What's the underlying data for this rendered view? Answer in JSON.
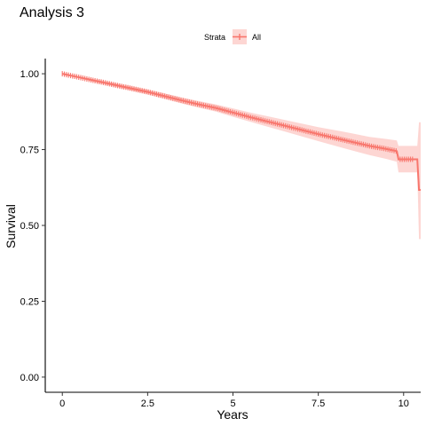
{
  "chart_data": {
    "type": "line",
    "title": "Analysis 3",
    "xlabel": "Years",
    "ylabel": "Survival",
    "xlim": [
      -0.5,
      10.5
    ],
    "ylim": [
      -0.05,
      1.05
    ],
    "x_ticks": [
      0,
      2.5,
      5,
      7.5,
      10
    ],
    "x_tick_labels": [
      "0",
      "2.5",
      "5",
      "7.5",
      "10"
    ],
    "y_ticks": [
      0,
      0.25,
      0.5,
      0.75,
      1
    ],
    "y_tick_labels": [
      "0.00",
      "0.25",
      "0.50",
      "0.75",
      "1.00"
    ],
    "grid": false,
    "legend": {
      "title": "Strata",
      "position": "top"
    },
    "colors": {
      "series": "#F8766D"
    },
    "series": [
      {
        "name": "All",
        "x": [
          0,
          0.5,
          1,
          1.5,
          2,
          2.5,
          3,
          3.5,
          4,
          4.5,
          5,
          5.5,
          6,
          6.5,
          7,
          7.5,
          8,
          8.5,
          9,
          9.5,
          9.8,
          9.85,
          10.4,
          10.45,
          10.5
        ],
        "y": [
          1.0,
          0.988,
          0.976,
          0.964,
          0.952,
          0.94,
          0.926,
          0.912,
          0.899,
          0.887,
          0.872,
          0.857,
          0.843,
          0.829,
          0.815,
          0.801,
          0.788,
          0.775,
          0.762,
          0.752,
          0.745,
          0.718,
          0.718,
          0.617,
          0.617
        ],
        "lower": [
          1.0,
          0.985,
          0.971,
          0.958,
          0.945,
          0.932,
          0.917,
          0.902,
          0.888,
          0.875,
          0.858,
          0.842,
          0.826,
          0.81,
          0.794,
          0.778,
          0.762,
          0.747,
          0.732,
          0.719,
          0.71,
          0.675,
          0.675,
          0.455,
          0.455
        ],
        "upper": [
          1.0,
          0.991,
          0.981,
          0.97,
          0.959,
          0.948,
          0.935,
          0.922,
          0.91,
          0.899,
          0.886,
          0.872,
          0.86,
          0.848,
          0.836,
          0.824,
          0.814,
          0.803,
          0.792,
          0.785,
          0.78,
          0.762,
          0.762,
          0.84,
          0.84
        ]
      }
    ]
  }
}
